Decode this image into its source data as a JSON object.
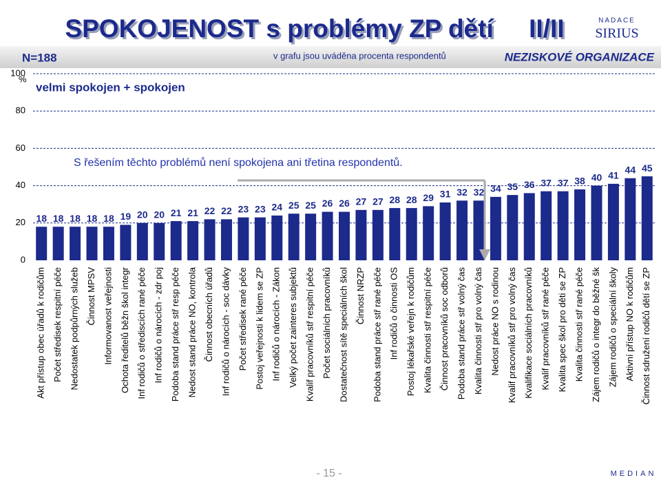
{
  "chart_data": {
    "type": "bar",
    "title": "SPOKOJENOST s problémy ZP dětí     II/II",
    "sample": "N=188",
    "note": "v grafu jsou uváděna procenta respondentů",
    "segment": "NEZISKOVÉ ORGANIZACE",
    "subtitle": "velmi spokojen + spokojen",
    "annotation": "S řešením těchto problémů není spokojena ani třetina respondentů.",
    "y_unit": "%",
    "page_number": "- 15 -",
    "logo_top": [
      "NADACE",
      "SIRIUS"
    ],
    "logo_bottom": "MEDIAN",
    "categories": [
      "Akt přístup obec úřadů k rodičům",
      "Počet středisek respitní péče",
      "Nedostatek podpůrných služeb",
      "Činnost MPSV",
      "Informovanost veřejnosti",
      "Ochota ředitelů běžn škol integr",
      "Inf rodičů o střediscích rané péče",
      "Inf rodičů o nárocích - zdr poj",
      "Podoba stand práce stř resp péče",
      "Nedost stand práce NO, kontrola",
      "Činnost obecních úřadů",
      "Inf rodičů o nárocích - soc dávky",
      "Počet středisek rané péče",
      "Postoj veřejnosti k lidem se ZP",
      "Inf rodičů o nárocích - Zákon",
      "Velký počet zainteres subjektů",
      "Kvalif pracovníků stř respitní péče",
      "Počet sociálních pracovníků",
      "Dostatečnost sítě speciálních škol",
      "Činnost NRZP",
      "Podoba stand práce stř rané péče",
      "Inf rodičů o činnosti OS",
      "Postoj lékařské veřejn k rodičům",
      "Kvalita činnosti stř respitní péče",
      "Činnost pracovníků soc odborů",
      "Podoba stand práce stř volný čas",
      "Kvalita činnosti stř pro volný čas",
      "Nedost práce NO s rodinou",
      "Kvalif pracovníků stř pro volný čas",
      "Kvalifikace sociálních pracovníků",
      "Kvalif pracovníků stř rané péče",
      "Kvalita spec škol pro děti se ZP",
      "Kvalita činnosti stř rané péče",
      "Zájem rodičů o integr do běžné šk",
      "Zájem rodičů o speciální školy",
      "Aktivní přístup NO k rodičům",
      "Činnost sdružení rodičů dětí se ZP"
    ],
    "values": [
      18,
      18,
      18,
      18,
      18,
      19,
      20,
      20,
      21,
      21,
      22,
      22,
      23,
      23,
      24,
      25,
      25,
      26,
      26,
      27,
      27,
      28,
      28,
      29,
      31,
      32,
      32,
      34,
      35,
      36,
      37,
      37,
      38,
      40,
      41,
      44,
      45
    ],
    "color": "#1c2a8c",
    "ylim": [
      0,
      100
    ],
    "yticks": [
      0,
      20,
      40,
      60,
      80,
      100
    ],
    "grid": true
  }
}
